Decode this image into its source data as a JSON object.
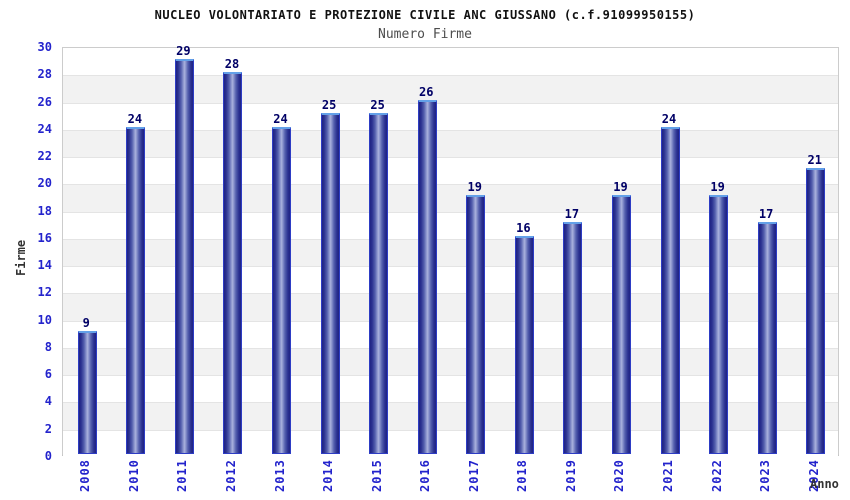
{
  "header": {
    "title": "NUCLEO VOLONTARIATO E PROTEZIONE CIVILE ANC GIUSSANO (c.f.91099950155)",
    "subtitle": "Numero Firme"
  },
  "chart_data": {
    "type": "bar",
    "title": "NUCLEO VOLONTARIATO E PROTEZIONE CIVILE ANC GIUSSANO (c.f.91099950155)",
    "subtitle": "Numero Firme",
    "xlabel": "Anno",
    "ylabel": "Firme",
    "categories": [
      "2008",
      "2010",
      "2011",
      "2012",
      "2013",
      "2014",
      "2015",
      "2016",
      "2017",
      "2018",
      "2019",
      "2020",
      "2021",
      "2022",
      "2023",
      "2024"
    ],
    "values": [
      9,
      24,
      29,
      28,
      24,
      25,
      25,
      26,
      19,
      16,
      17,
      19,
      24,
      19,
      17,
      21
    ],
    "ylim": [
      0,
      30
    ],
    "ytick_step": 2,
    "yticks": [
      0,
      2,
      4,
      6,
      8,
      10,
      12,
      14,
      16,
      18,
      20,
      22,
      24,
      26,
      28,
      30
    ],
    "grid": "horizontal-lines-with-alternating-bands",
    "legend": "none",
    "colors": {
      "bar_dark": "#1f2383",
      "bar_light": "#aab2de",
      "bar_side_border": "#2d3cc4",
      "bar_top_cap": "#63a0e8",
      "tick_label": "#2323cc",
      "value_label": "#000066",
      "title": "#111111",
      "subtitle": "#4d4d4d",
      "axis_label": "#333333",
      "band_fill": "#f2f2f2",
      "grid_line": "#e4e4e4",
      "plot_border": "#cccccc"
    }
  }
}
